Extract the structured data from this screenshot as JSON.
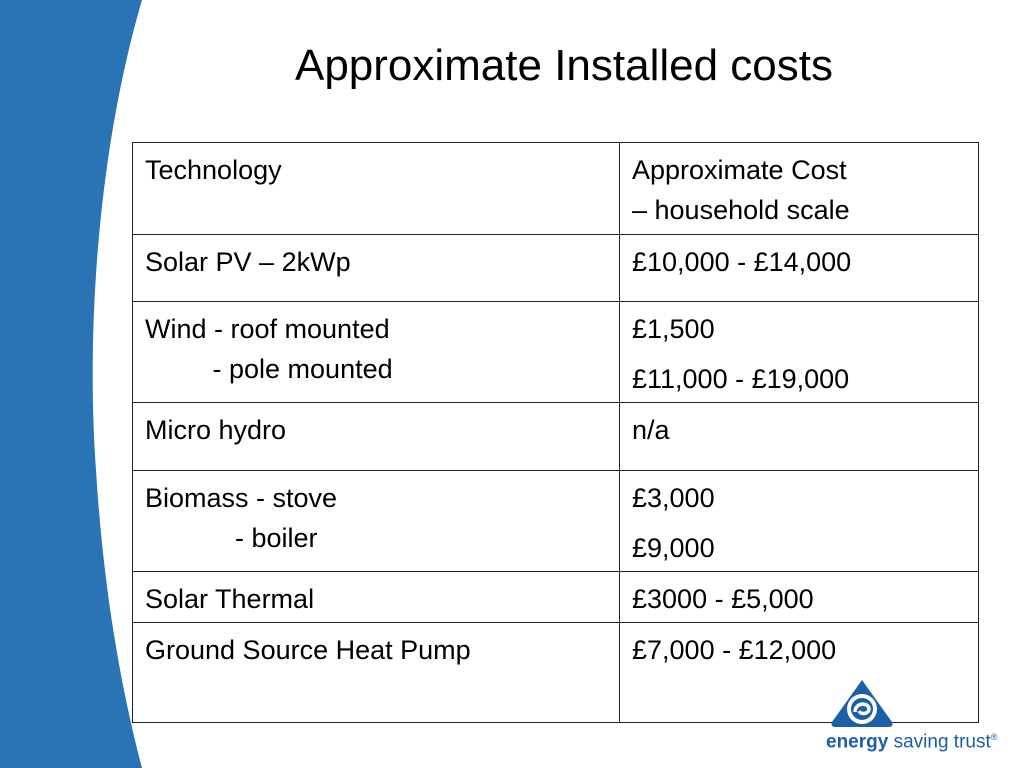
{
  "slide": {
    "title": "Approximate Installed costs"
  },
  "table": {
    "headers": {
      "technology": "Technology",
      "cost_line1": "Approximate Cost",
      "cost_line2": "– household scale"
    },
    "rows": [
      {
        "tech": [
          "Solar PV – 2kWp"
        ],
        "cost": [
          "£10,000 - £14,000"
        ]
      },
      {
        "tech": [
          "Wind - roof mounted",
          "         - pole mounted"
        ],
        "cost": [
          "£1,500",
          "£11,000 - £19,000"
        ]
      },
      {
        "tech": [
          "Micro hydro"
        ],
        "cost": [
          "n/a"
        ]
      },
      {
        "tech": [
          "Biomass - stove",
          "            - boiler"
        ],
        "cost": [
          "£3,000",
          "£9,000"
        ]
      },
      {
        "tech": [
          "Solar Thermal"
        ],
        "cost": [
          "£3000 - £5,000"
        ]
      },
      {
        "tech": [
          "Ground Source Heat Pump"
        ],
        "cost": [
          "£7,000 - £12,000"
        ]
      }
    ]
  },
  "logo": {
    "word1": "energy",
    "word2": " saving trust",
    "reg": "®"
  },
  "colors": {
    "band_blue": "#2a74b6",
    "logo_blue": "#1a5fa8"
  }
}
